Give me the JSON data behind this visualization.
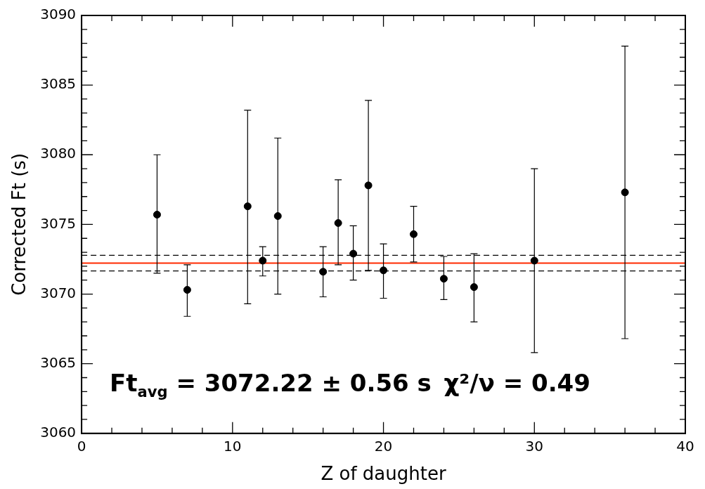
{
  "chart_data": {
    "type": "scatter",
    "xlabel": "Z of daughter",
    "ylabel": "Corrected Ft (s)",
    "x": [
      5,
      7,
      11,
      12,
      13,
      16,
      17,
      18,
      19,
      20,
      22,
      24,
      26,
      30,
      36
    ],
    "values": [
      3075.7,
      3070.3,
      3076.3,
      3072.4,
      3075.6,
      3071.6,
      3075.1,
      3072.9,
      3077.8,
      3071.7,
      3074.3,
      3071.1,
      3070.5,
      3072.4,
      3077.3
    ],
    "errors": [
      [
        3071.5,
        3080.0
      ],
      [
        3068.4,
        3072.1
      ],
      [
        3069.3,
        3083.2
      ],
      [
        3071.3,
        3073.4
      ],
      [
        3070.0,
        3081.2
      ],
      [
        3069.8,
        3073.4
      ],
      [
        3072.1,
        3078.2
      ],
      [
        3071.0,
        3074.9
      ],
      [
        3071.7,
        3083.9
      ],
      [
        3069.7,
        3073.6
      ],
      [
        3072.3,
        3076.3
      ],
      [
        3069.6,
        3072.7
      ],
      [
        3068.0,
        3072.9
      ],
      [
        3065.8,
        3079.0
      ],
      [
        3066.8,
        3087.8
      ]
    ],
    "color": "#000000",
    "marker": "circle",
    "grid": false,
    "legend": false,
    "xlim": [
      0,
      40
    ],
    "xticks": [
      0,
      {
        "value": 2,
        "label": null
      },
      {
        "value": 4,
        "label": null
      },
      {
        "value": 6,
        "label": null
      },
      {
        "value": 8,
        "label": null
      },
      10,
      {
        "value": 12,
        "label": null
      },
      {
        "value": 14,
        "label": null
      },
      {
        "value": 16,
        "label": null
      },
      {
        "value": 18,
        "label": null
      },
      20,
      {
        "value": 22,
        "label": null
      },
      {
        "value": 24,
        "label": null
      },
      {
        "value": 26,
        "label": null
      },
      {
        "value": 28,
        "label": null
      },
      30,
      {
        "value": 32,
        "label": null
      },
      {
        "value": 34,
        "label": null
      },
      {
        "value": 36,
        "label": null
      },
      {
        "value": 38,
        "label": null
      },
      40
    ],
    "ylim": [
      3060,
      3090
    ],
    "yticks": [
      3060,
      {
        "value": 3061,
        "label": null
      },
      {
        "value": 3062,
        "label": null
      },
      {
        "value": 3063,
        "label": null
      },
      {
        "value": 3064,
        "label": null
      },
      3065,
      {
        "value": 3066,
        "label": null
      },
      {
        "value": 3067,
        "label": null
      },
      {
        "value": 3068,
        "label": null
      },
      {
        "value": 3069,
        "label": null
      },
      3070,
      {
        "value": 3071,
        "label": null
      },
      {
        "value": 3072,
        "label": null
      },
      {
        "value": 3073,
        "label": null
      },
      {
        "value": 3074,
        "label": null
      },
      3075,
      {
        "value": 3076,
        "label": null
      },
      {
        "value": 3077,
        "label": null
      },
      {
        "value": 3078,
        "label": null
      },
      {
        "value": 3079,
        "label": null
      },
      3080,
      {
        "value": 3081,
        "label": null
      },
      {
        "value": 3082,
        "label": null
      },
      {
        "value": 3083,
        "label": null
      },
      {
        "value": 3084,
        "label": null
      },
      3085,
      {
        "value": 3086,
        "label": null
      },
      {
        "value": 3087,
        "label": null
      },
      {
        "value": 3088,
        "label": null
      },
      {
        "value": 3089,
        "label": null
      },
      3090
    ],
    "ref_lines": [
      {
        "axis": "y",
        "value": 3072.22,
        "label": null,
        "color": "#ff2a00",
        "line_style": "solid"
      },
      {
        "axis": "y",
        "value": 3072.78,
        "label": null,
        "color": "#000000",
        "line_style": "dashed"
      },
      {
        "axis": "y",
        "value": 3071.66,
        "label": null,
        "color": "#000000",
        "line_style": "dashed"
      }
    ],
    "annotations": [
      "Ft$_{avg}$ = 3072.22 ± 0.56 s",
      "χ²/ν = 0.49"
    ]
  }
}
